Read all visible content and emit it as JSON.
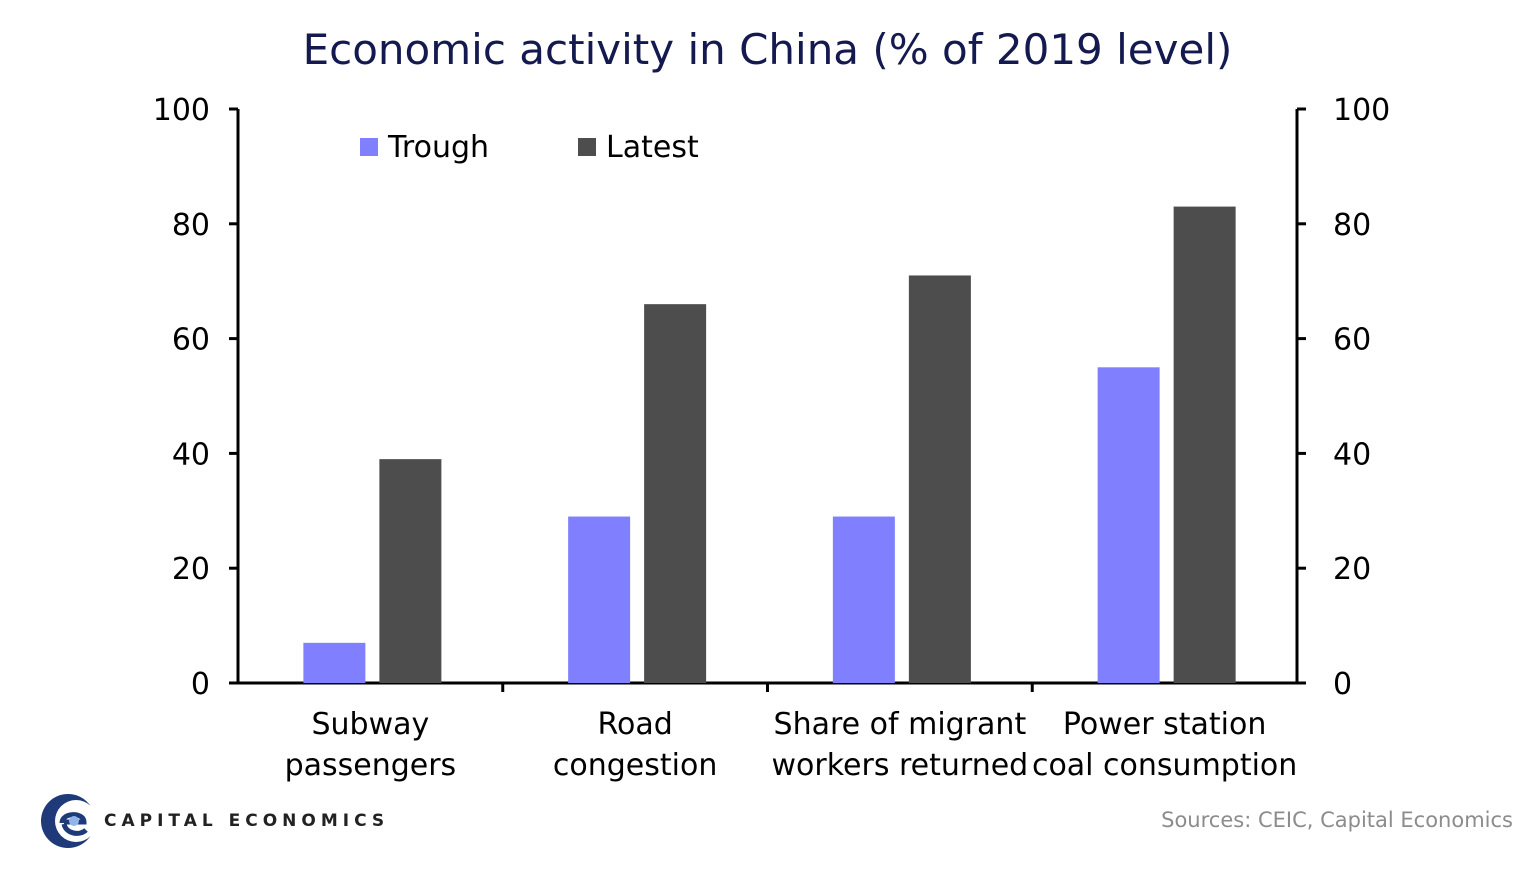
{
  "chart_data": {
    "type": "bar",
    "title": "Economic activity in China (% of 2019 level)",
    "categories": [
      [
        "Subway",
        "passengers"
      ],
      [
        "Road",
        "congestion"
      ],
      [
        "Share of migrant",
        "workers returned"
      ],
      [
        "Power station",
        "coal consumption"
      ]
    ],
    "series": [
      {
        "name": "Trough",
        "color": "#8080ff",
        "values": [
          7,
          29,
          29,
          55
        ]
      },
      {
        "name": "Latest",
        "color": "#4d4d4d",
        "values": [
          39,
          66,
          71,
          83
        ]
      }
    ],
    "ylim": [
      0,
      100
    ],
    "yticks": [
      "0",
      "20",
      "40",
      "60",
      "80",
      "100"
    ],
    "y_axis_left": true,
    "y_axis_right": true,
    "grid": false,
    "legend_position": "top-left"
  },
  "footer": {
    "logo_text": "CAPITAL ECONOMICS",
    "logo_icon": "capital-economics-logo-icon",
    "source": "Sources: CEIC, Capital Economics"
  }
}
